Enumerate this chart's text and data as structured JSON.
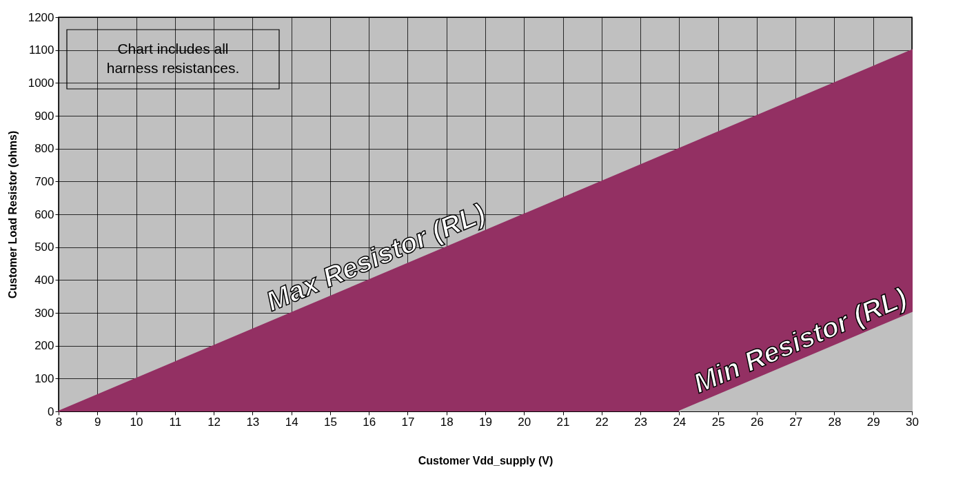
{
  "chart_data": {
    "type": "area",
    "xlabel": "Customer Vdd_supply (V)",
    "ylabel": "Customer Load Resistor (ohms)",
    "xlim": [
      8,
      30
    ],
    "xticks": [
      8,
      9,
      10,
      11,
      12,
      13,
      14,
      15,
      16,
      17,
      18,
      19,
      20,
      21,
      22,
      23,
      24,
      25,
      26,
      27,
      28,
      29,
      30
    ],
    "ylim": [
      0,
      1200
    ],
    "yticks": [
      0,
      100,
      200,
      300,
      400,
      500,
      600,
      700,
      800,
      900,
      1000,
      1100,
      1200
    ],
    "grid": true,
    "legend": false,
    "series": [
      {
        "name": "Max Resistor (RL)",
        "color": "#933063",
        "x": [
          8,
          30
        ],
        "values": [
          0,
          1100
        ]
      },
      {
        "name": "Min Resistor (RL)",
        "color": "#c0c0c0",
        "x": [
          24,
          30
        ],
        "values": [
          0,
          300
        ]
      }
    ],
    "annotations": [
      "Chart includes all\nharness resistances."
    ]
  }
}
